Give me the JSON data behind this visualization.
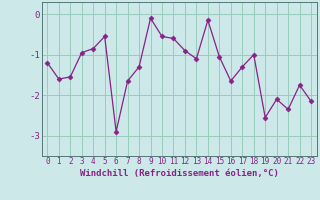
{
  "x": [
    0,
    1,
    2,
    3,
    4,
    5,
    6,
    7,
    8,
    9,
    10,
    11,
    12,
    13,
    14,
    15,
    16,
    17,
    18,
    19,
    20,
    21,
    22,
    23
  ],
  "y": [
    -1.2,
    -1.6,
    -1.55,
    -0.95,
    -0.85,
    -0.55,
    -2.9,
    -1.65,
    -1.3,
    -0.1,
    -0.55,
    -0.6,
    -0.9,
    -1.1,
    -0.15,
    -1.05,
    -1.65,
    -1.3,
    -1.0,
    -2.55,
    -2.1,
    -2.35,
    -1.75,
    -2.15
  ],
  "line_color": "#882288",
  "marker": "D",
  "marker_size": 2.5,
  "background_color": "#cce8e8",
  "grid_color": "#99ccbb",
  "xlabel": "Windchill (Refroidissement éolien,°C)",
  "ylabel": "",
  "ylim": [
    -3.5,
    0.3
  ],
  "xlim": [
    -0.5,
    23.5
  ],
  "yticks": [
    0,
    -1,
    -2,
    -3
  ],
  "xticks": [
    0,
    1,
    2,
    3,
    4,
    5,
    6,
    7,
    8,
    9,
    10,
    11,
    12,
    13,
    14,
    15,
    16,
    17,
    18,
    19,
    20,
    21,
    22,
    23
  ],
  "tick_fontsize": 5.5,
  "xlabel_fontsize": 6.5,
  "ytick_fontsize": 6.5
}
